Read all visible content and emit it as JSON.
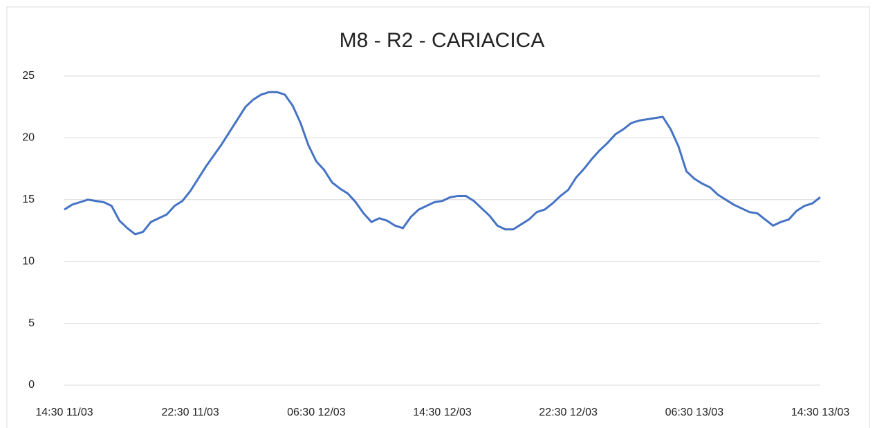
{
  "chart_data": {
    "type": "line",
    "title": "M8 - R2 - CARIACICA",
    "categories": [
      "14:30 11/03",
      null,
      null,
      null,
      null,
      null,
      null,
      null,
      null,
      null,
      null,
      null,
      null,
      null,
      null,
      null,
      "22:30 11/03",
      null,
      null,
      null,
      null,
      null,
      null,
      null,
      null,
      null,
      null,
      null,
      null,
      null,
      null,
      null,
      "06:30 12/03",
      null,
      null,
      null,
      null,
      null,
      null,
      null,
      null,
      null,
      null,
      null,
      null,
      null,
      null,
      null,
      "14:30 12/03",
      null,
      null,
      null,
      null,
      null,
      null,
      null,
      null,
      null,
      null,
      null,
      null,
      null,
      null,
      null,
      "22:30 12/03",
      null,
      null,
      null,
      null,
      null,
      null,
      null,
      null,
      null,
      null,
      null,
      null,
      null,
      null,
      null,
      "06:30 13/03",
      null,
      null,
      null,
      null,
      null,
      null,
      null,
      null,
      null,
      null,
      null,
      null,
      null,
      null,
      null,
      "14:30 13/03"
    ],
    "values": [
      14.2,
      14.6,
      14.8,
      15.0,
      14.9,
      14.8,
      14.5,
      13.3,
      12.7,
      12.2,
      12.4,
      13.2,
      13.5,
      13.8,
      14.5,
      14.9,
      15.7,
      16.7,
      17.7,
      18.6,
      19.5,
      20.5,
      21.5,
      22.5,
      23.1,
      23.5,
      23.7,
      23.7,
      23.5,
      22.6,
      21.2,
      19.4,
      18.1,
      17.4,
      16.4,
      15.9,
      15.5,
      14.8,
      13.9,
      13.2,
      13.5,
      13.3,
      12.9,
      12.7,
      13.6,
      14.2,
      14.5,
      14.8,
      14.9,
      15.2,
      15.3,
      15.3,
      14.9,
      14.3,
      13.7,
      12.9,
      12.6,
      12.6,
      13.0,
      13.4,
      14.0,
      14.2,
      14.7,
      15.3,
      15.8,
      16.8,
      17.5,
      18.3,
      19.0,
      19.6,
      20.3,
      20.7,
      21.2,
      21.4,
      21.5,
      21.6,
      21.7,
      20.7,
      19.3,
      17.3,
      16.7,
      16.3,
      16.0,
      15.4,
      15.0,
      14.6,
      14.3,
      14.0,
      13.9,
      13.4,
      12.9,
      13.2,
      13.4,
      14.1,
      14.5,
      14.7,
      15.2
    ],
    "color": "#4472c4",
    "ylim": [
      0,
      25
    ],
    "yticks": [
      0,
      5,
      10,
      15,
      20,
      25
    ],
    "grid": true
  }
}
